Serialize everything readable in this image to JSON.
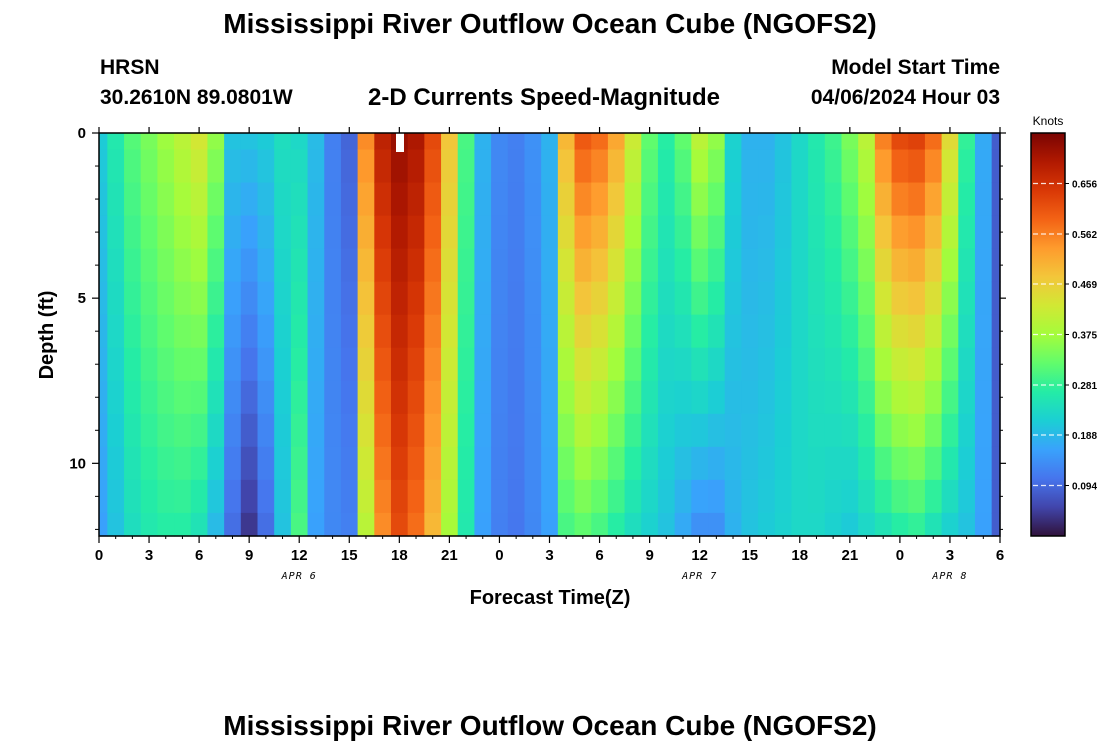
{
  "header": {
    "title": "Mississippi River Outflow Ocean Cube (NGOFS2)",
    "station": "HRSN",
    "coords": "30.2610N  89.0801W",
    "subtitle": "2-D Currents Speed-Magnitude",
    "model_start_label": "Model Start Time",
    "model_start_value": "04/06/2024 Hour 03"
  },
  "footer": {
    "title": "Mississippi River Outflow Ocean Cube (NGOFS2)"
  },
  "chart_data": {
    "type": "heatmap",
    "xlabel": "Forecast Time(Z)",
    "ylabel": "Depth (ft)",
    "colorbar_label": "Knots",
    "x_range_hours": [
      0,
      54
    ],
    "y_range_ft": [
      0,
      12.2
    ],
    "x_tick_labels": [
      "0",
      "3",
      "6",
      "9",
      "12",
      "15",
      "18",
      "21",
      "0",
      "3",
      "6",
      "9",
      "12",
      "15",
      "18",
      "21",
      "0",
      "3",
      "6"
    ],
    "y_tick_labels": [
      "0",
      "5",
      "10"
    ],
    "y_tick_values": [
      0,
      5,
      10
    ],
    "date_labels": [
      {
        "text": "APR 6",
        "hour": 12
      },
      {
        "text": "APR 7",
        "hour": 36
      },
      {
        "text": "APR 8",
        "hour": 51
      }
    ],
    "colorbar_ticks": [
      "0.094",
      "0.188",
      "0.281",
      "0.375",
      "0.469",
      "0.562",
      "0.656"
    ],
    "colorbar_tick_values": [
      0.094,
      0.188,
      0.281,
      0.375,
      0.469,
      0.562,
      0.656
    ],
    "value_range": [
      0,
      0.75
    ],
    "depth_levels_ft": [
      0,
      1,
      2,
      3,
      4,
      5,
      6,
      7,
      8,
      9,
      10,
      11,
      12
    ],
    "columns": [
      {
        "hour": 0,
        "surface": 0.21,
        "bottom": 0.16
      },
      {
        "hour": 1,
        "surface": 0.26,
        "bottom": 0.2
      },
      {
        "hour": 2,
        "surface": 0.31,
        "bottom": 0.24
      },
      {
        "hour": 3,
        "surface": 0.34,
        "bottom": 0.26
      },
      {
        "hour": 4,
        "surface": 0.37,
        "bottom": 0.27
      },
      {
        "hour": 5,
        "surface": 0.4,
        "bottom": 0.27
      },
      {
        "hour": 6,
        "surface": 0.43,
        "bottom": 0.25
      },
      {
        "hour": 7,
        "surface": 0.36,
        "bottom": 0.19
      },
      {
        "hour": 8,
        "surface": 0.2,
        "bottom": 0.1
      },
      {
        "hour": 9,
        "surface": 0.2,
        "bottom": 0.04
      },
      {
        "hour": 10,
        "surface": 0.21,
        "bottom": 0.1
      },
      {
        "hour": 11,
        "surface": 0.24,
        "bottom": 0.2
      },
      {
        "hour": 12,
        "surface": 0.23,
        "bottom": 0.3
      },
      {
        "hour": 13,
        "surface": 0.19,
        "bottom": 0.16
      },
      {
        "hour": 14,
        "surface": 0.12,
        "bottom": 0.13
      },
      {
        "hour": 15,
        "surface": 0.09,
        "bottom": 0.12
      },
      {
        "hour": 16,
        "surface": 0.55,
        "bottom": 0.4
      },
      {
        "hour": 17,
        "surface": 0.68,
        "bottom": 0.55
      },
      {
        "hour": 18,
        "surface": 0.72,
        "bottom": 0.62
      },
      {
        "hour": 19,
        "surface": 0.7,
        "bottom": 0.58
      },
      {
        "hour": 20,
        "surface": 0.62,
        "bottom": 0.5
      },
      {
        "hour": 21,
        "surface": 0.48,
        "bottom": 0.38
      },
      {
        "hour": 22,
        "surface": 0.3,
        "bottom": 0.26
      },
      {
        "hour": 23,
        "surface": 0.18,
        "bottom": 0.16
      },
      {
        "hour": 24,
        "surface": 0.13,
        "bottom": 0.12
      },
      {
        "hour": 25,
        "surface": 0.12,
        "bottom": 0.11
      },
      {
        "hour": 26,
        "surface": 0.14,
        "bottom": 0.13
      },
      {
        "hour": 27,
        "surface": 0.18,
        "bottom": 0.16
      },
      {
        "hour": 28,
        "surface": 0.5,
        "bottom": 0.3
      },
      {
        "hour": 29,
        "surface": 0.6,
        "bottom": 0.32
      },
      {
        "hour": 30,
        "surface": 0.58,
        "bottom": 0.3
      },
      {
        "hour": 31,
        "surface": 0.52,
        "bottom": 0.27
      },
      {
        "hour": 32,
        "surface": 0.42,
        "bottom": 0.24
      },
      {
        "hour": 33,
        "surface": 0.32,
        "bottom": 0.22
      },
      {
        "hour": 34,
        "surface": 0.27,
        "bottom": 0.2
      },
      {
        "hour": 35,
        "surface": 0.32,
        "bottom": 0.17
      },
      {
        "hour": 36,
        "surface": 0.4,
        "bottom": 0.14
      },
      {
        "hour": 37,
        "surface": 0.36,
        "bottom": 0.14
      },
      {
        "hour": 38,
        "surface": 0.22,
        "bottom": 0.18
      },
      {
        "hour": 39,
        "surface": 0.18,
        "bottom": 0.2
      },
      {
        "hour": 40,
        "surface": 0.18,
        "bottom": 0.21
      },
      {
        "hour": 41,
        "surface": 0.2,
        "bottom": 0.22
      },
      {
        "hour": 42,
        "surface": 0.23,
        "bottom": 0.23
      },
      {
        "hour": 43,
        "surface": 0.26,
        "bottom": 0.23
      },
      {
        "hour": 44,
        "surface": 0.29,
        "bottom": 0.22
      },
      {
        "hour": 45,
        "surface": 0.34,
        "bottom": 0.21
      },
      {
        "hour": 46,
        "surface": 0.4,
        "bottom": 0.23
      },
      {
        "hour": 47,
        "surface": 0.56,
        "bottom": 0.25
      },
      {
        "hour": 48,
        "surface": 0.62,
        "bottom": 0.27
      },
      {
        "hour": 49,
        "surface": 0.63,
        "bottom": 0.28
      },
      {
        "hour": 50,
        "surface": 0.58,
        "bottom": 0.25
      },
      {
        "hour": 51,
        "surface": 0.45,
        "bottom": 0.22
      },
      {
        "hour": 52,
        "surface": 0.28,
        "bottom": 0.2
      },
      {
        "hour": 53,
        "surface": 0.17,
        "bottom": 0.16
      },
      {
        "hour": 54,
        "surface": 0.08,
        "bottom": 0.08
      }
    ]
  },
  "colors": {
    "colormap": [
      "#30123b",
      "#4145ab",
      "#4675ed",
      "#39a2fc",
      "#1bcfd4",
      "#24eca6",
      "#61fc6c",
      "#a4fc3b",
      "#d1e834",
      "#f3c63a",
      "#fe9b2d",
      "#f36315",
      "#d93806",
      "#b11901",
      "#7a0402"
    ],
    "no_data_marker": "#ffffff"
  }
}
